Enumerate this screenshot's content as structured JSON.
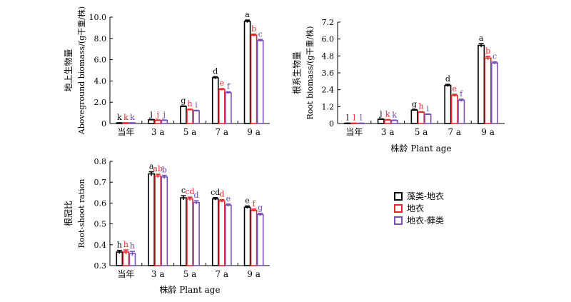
{
  "colors": {
    "axis": "#000000",
    "series": [
      "#000000",
      "#e8262a",
      "#7a4fb5"
    ],
    "letters": [
      "#000000",
      "#e8262a",
      "#6a44b0"
    ]
  },
  "legend": [
    {
      "label": "藻类-地衣"
    },
    {
      "label": "地衣"
    },
    {
      "label": "地衣-藓类"
    }
  ],
  "chart_data": [
    {
      "type": "bar",
      "panel": "aboveground",
      "ylabel_cn": "地上生物量",
      "ylabel_en": "Aboveground biomass/(g干重/株)",
      "xlabel": "",
      "categories": [
        "当年",
        "3 a",
        "5 a",
        "7 a",
        "9 a"
      ],
      "ylim": [
        0,
        10
      ],
      "yticks": [
        "0",
        "2.0",
        "4.0",
        "6.0",
        "8.0",
        "10.0"
      ],
      "series": [
        {
          "values": [
            0.05,
            0.35,
            1.6,
            4.3,
            9.6
          ],
          "errors": [
            0.02,
            0.03,
            0.05,
            0.1,
            0.12
          ],
          "letters": [
            "k",
            "j",
            "g",
            "d",
            "a"
          ]
        },
        {
          "values": [
            0.05,
            0.3,
            1.3,
            3.2,
            8.3
          ],
          "errors": [
            0.02,
            0.03,
            0.05,
            0.08,
            0.1
          ],
          "letters": [
            "k",
            "j",
            "h",
            "e",
            "b"
          ]
        },
        {
          "values": [
            0.05,
            0.3,
            1.2,
            2.9,
            7.8
          ],
          "errors": [
            0.02,
            0.03,
            0.04,
            0.08,
            0.1
          ],
          "letters": [
            "k",
            "j",
            "i",
            "f",
            "c"
          ]
        }
      ]
    },
    {
      "type": "bar",
      "panel": "root",
      "ylabel_cn": "根系生物量",
      "ylabel_en": "Root biomass/(g干重/株)",
      "xlabel": "株龄 Plant age",
      "categories": [
        "当年",
        "3 a",
        "5 a",
        "7 a",
        "9 a"
      ],
      "ylim": [
        0,
        7.2
      ],
      "yticks": [
        "0",
        "1.2",
        "2.4",
        "3.6",
        "4.8",
        "6.0",
        "7.2"
      ],
      "series": [
        {
          "values": [
            0.02,
            0.3,
            0.95,
            2.7,
            5.55
          ],
          "errors": [
            0.01,
            0.03,
            0.04,
            0.08,
            0.12
          ],
          "letters": [
            "l",
            "j",
            "g",
            "d",
            "a"
          ]
        },
        {
          "values": [
            0.02,
            0.25,
            0.8,
            2.0,
            4.65
          ],
          "errors": [
            0.01,
            0.03,
            0.04,
            0.08,
            0.12
          ],
          "letters": [
            "l",
            "k",
            "h",
            "e",
            "b"
          ]
        },
        {
          "values": [
            0.02,
            0.22,
            0.65,
            1.65,
            4.3
          ],
          "errors": [
            0.01,
            0.02,
            0.03,
            0.08,
            0.08
          ],
          "letters": [
            "l",
            "k",
            "i",
            "f",
            "c"
          ]
        }
      ]
    },
    {
      "type": "bar",
      "panel": "ratio",
      "ylabel_cn": "根冠比",
      "ylabel_en": "Root-shoot ration",
      "xlabel": "株龄 Plant age",
      "categories": [
        "当年",
        "3 a",
        "5 a",
        "7 a",
        "9 a"
      ],
      "ylim": [
        0.3,
        0.8
      ],
      "yticks": [
        "0.3",
        "0.4",
        "0.5",
        "0.6",
        "0.7",
        "0.8"
      ],
      "series": [
        {
          "values": [
            0.365,
            0.74,
            0.625,
            0.62,
            0.58
          ],
          "errors": [
            0.008,
            0.01,
            0.01,
            0.006,
            0.006
          ],
          "letters": [
            "h",
            "a",
            "c",
            "cd",
            "e"
          ]
        },
        {
          "values": [
            0.365,
            0.73,
            0.62,
            0.61,
            0.565
          ],
          "errors": [
            0.01,
            0.008,
            0.008,
            0.006,
            0.006
          ],
          "letters": [
            "h",
            "ab",
            "cd",
            "d",
            "f"
          ]
        },
        {
          "values": [
            0.358,
            0.725,
            0.603,
            0.59,
            0.545
          ],
          "errors": [
            0.01,
            0.008,
            0.008,
            0.005,
            0.006
          ],
          "letters": [
            "h",
            "b",
            "d",
            "e",
            "g"
          ]
        }
      ]
    }
  ]
}
